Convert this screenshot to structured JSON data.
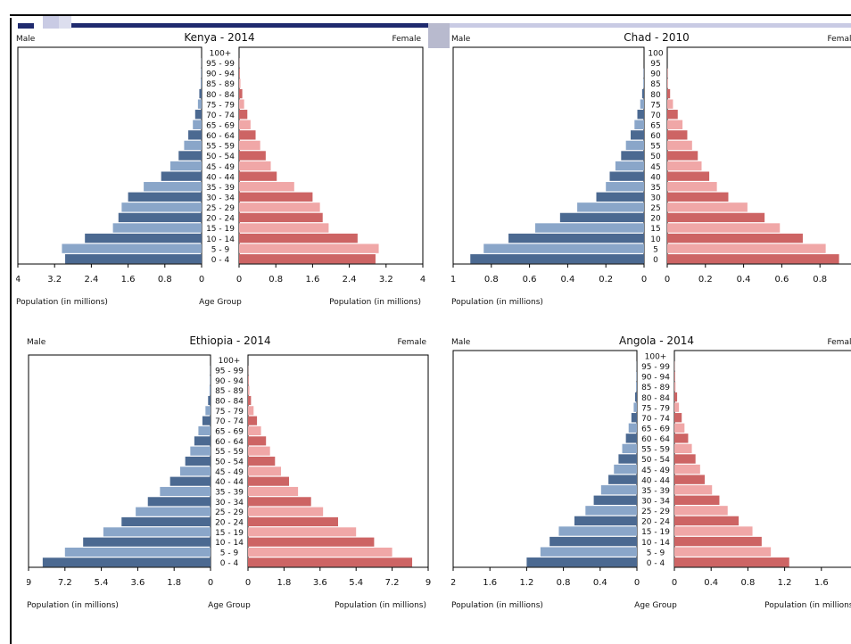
{
  "colors": {
    "male_dark": "#4b6991",
    "male_light": "#8aa6c9",
    "female_dark": "#cd6464",
    "female_light": "#f0a7a7",
    "frame": "#000000",
    "deco_navy": "#1f2a6e",
    "deco_lavender": "#c9cbe4"
  },
  "chart_data": [
    {
      "type": "bar",
      "title": "Kenya - 2014",
      "left_label": "Male",
      "right_label": "Female",
      "xlabel_left": "Population (in millions)",
      "xlabel_center": "Age Group",
      "xlabel_right": "Population (in millions)",
      "categories": [
        "100+",
        "95 - 99",
        "90 - 94",
        "85 - 89",
        "80 - 84",
        "75 - 79",
        "70 - 74",
        "65 - 69",
        "60 - 64",
        "55 - 59",
        "50 - 54",
        "45 - 49",
        "40 - 44",
        "35 - 39",
        "30 - 34",
        "25 - 29",
        "20 - 24",
        "15 - 19",
        "10 - 14",
        "5 - 9",
        "0 - 4"
      ],
      "series": [
        {
          "name": "Male",
          "values": [
            0,
            0.005,
            0.01,
            0.02,
            0.05,
            0.08,
            0.14,
            0.19,
            0.29,
            0.38,
            0.5,
            0.68,
            0.88,
            1.26,
            1.6,
            1.74,
            1.81,
            1.93,
            2.54,
            3.04,
            2.97
          ]
        },
        {
          "name": "Female",
          "values": [
            0,
            0.005,
            0.015,
            0.03,
            0.07,
            0.11,
            0.18,
            0.25,
            0.36,
            0.46,
            0.58,
            0.69,
            0.82,
            1.2,
            1.6,
            1.76,
            1.82,
            1.95,
            2.58,
            3.04,
            2.97
          ]
        }
      ],
      "xlim": [
        0,
        4
      ],
      "x_ticks_left": [
        "4",
        "3.2",
        "2.4",
        "1.6",
        "0.8",
        "0"
      ],
      "x_ticks_right": [
        "0",
        "0.8",
        "1.6",
        "2.4",
        "3.2",
        "4"
      ]
    },
    {
      "type": "bar",
      "title": "Chad - 2010",
      "left_label": "Male",
      "right_label": "Female",
      "xlabel_left": "Population (in millions)",
      "xlabel_center": "",
      "xlabel_right": "",
      "categories": [
        "100",
        "95",
        "90",
        "85",
        "80",
        "75",
        "70",
        "65",
        "60",
        "55",
        "50",
        "45",
        "40",
        "35",
        "30",
        "25",
        "20",
        "15",
        "10",
        "5",
        "0"
      ],
      "series": [
        {
          "name": "Male",
          "values": [
            0,
            0,
            0.002,
            0.004,
            0.01,
            0.02,
            0.035,
            0.05,
            0.07,
            0.095,
            0.12,
            0.15,
            0.18,
            0.2,
            0.25,
            0.35,
            0.44,
            0.57,
            0.71,
            0.84,
            0.91
          ]
        },
        {
          "name": "Female",
          "values": [
            0,
            0,
            0.002,
            0.004,
            0.015,
            0.03,
            0.055,
            0.08,
            0.105,
            0.13,
            0.16,
            0.18,
            0.22,
            0.26,
            0.32,
            0.42,
            0.51,
            0.59,
            0.71,
            0.83,
            0.9
          ]
        }
      ],
      "xlim": [
        0,
        1
      ],
      "x_ticks_left": [
        "1",
        "0.8",
        "0.6",
        "0.4",
        "0.2",
        "0"
      ],
      "x_ticks_right": [
        "0",
        "0.2",
        "0.4",
        "0.6",
        "0.8"
      ]
    },
    {
      "type": "bar",
      "title": "Ethiopia - 2014",
      "left_label": "Male",
      "right_label": "Female",
      "xlabel_left": "Population (in millions)",
      "xlabel_center": "Age Group",
      "xlabel_right": "Population (in millions)",
      "categories": [
        "100+",
        "95 - 99",
        "90 - 94",
        "85 - 89",
        "80 - 84",
        "75 - 79",
        "70 - 74",
        "65 - 69",
        "60 - 64",
        "55 - 59",
        "50 - 54",
        "45 - 49",
        "40 - 44",
        "35 - 39",
        "30 - 34",
        "25 - 29",
        "20 - 24",
        "15 - 19",
        "10 - 14",
        "5 - 9",
        "0 - 4"
      ],
      "series": [
        {
          "name": "Male",
          "values": [
            0,
            0.01,
            0.02,
            0.05,
            0.12,
            0.25,
            0.4,
            0.6,
            0.8,
            1.0,
            1.25,
            1.5,
            2.0,
            2.5,
            3.1,
            3.7,
            4.4,
            5.3,
            6.3,
            7.2,
            8.3
          ]
        },
        {
          "name": "Female",
          "values": [
            0,
            0.01,
            0.03,
            0.07,
            0.15,
            0.28,
            0.45,
            0.65,
            0.9,
            1.1,
            1.35,
            1.65,
            2.05,
            2.5,
            3.15,
            3.75,
            4.5,
            5.4,
            6.3,
            7.2,
            8.2
          ]
        }
      ],
      "xlim": [
        0,
        9
      ],
      "x_ticks_left": [
        "9",
        "7.2",
        "5.4",
        "3.6",
        "1.8",
        "0"
      ],
      "x_ticks_right": [
        "0",
        "1.8",
        "3.6",
        "5.4",
        "7.2",
        "9"
      ]
    },
    {
      "type": "bar",
      "title": "Angola - 2014",
      "left_label": "Male",
      "right_label": "Female",
      "xlabel_left": "Population (in millions)",
      "xlabel_center": "Age Group",
      "xlabel_right": "Population (in millions)",
      "categories": [
        "100+",
        "95 - 99",
        "90 - 94",
        "85 - 89",
        "80 - 84",
        "75 - 79",
        "70 - 74",
        "65 - 69",
        "60 - 64",
        "55 - 59",
        "50 - 54",
        "45 - 49",
        "40 - 44",
        "35 - 39",
        "30 - 34",
        "25 - 29",
        "20 - 24",
        "15 - 19",
        "10 - 14",
        "5 - 9",
        "0 - 4"
      ],
      "series": [
        {
          "name": "Male",
          "values": [
            0,
            0.002,
            0.005,
            0.01,
            0.02,
            0.035,
            0.06,
            0.09,
            0.12,
            0.16,
            0.2,
            0.25,
            0.31,
            0.39,
            0.47,
            0.56,
            0.68,
            0.85,
            0.95,
            1.05,
            1.2
          ]
        },
        {
          "name": "Female",
          "values": [
            0,
            0.003,
            0.007,
            0.013,
            0.03,
            0.05,
            0.08,
            0.11,
            0.15,
            0.19,
            0.23,
            0.28,
            0.33,
            0.41,
            0.49,
            0.58,
            0.7,
            0.85,
            0.95,
            1.05,
            1.25
          ]
        }
      ],
      "xlim": [
        0,
        2
      ],
      "x_ticks_left": [
        "2",
        "1.6",
        "1.2",
        "0.8",
        "0.4",
        "0"
      ],
      "x_ticks_right": [
        "0",
        "0.4",
        "0.8",
        "1.2",
        "1.6"
      ]
    }
  ]
}
